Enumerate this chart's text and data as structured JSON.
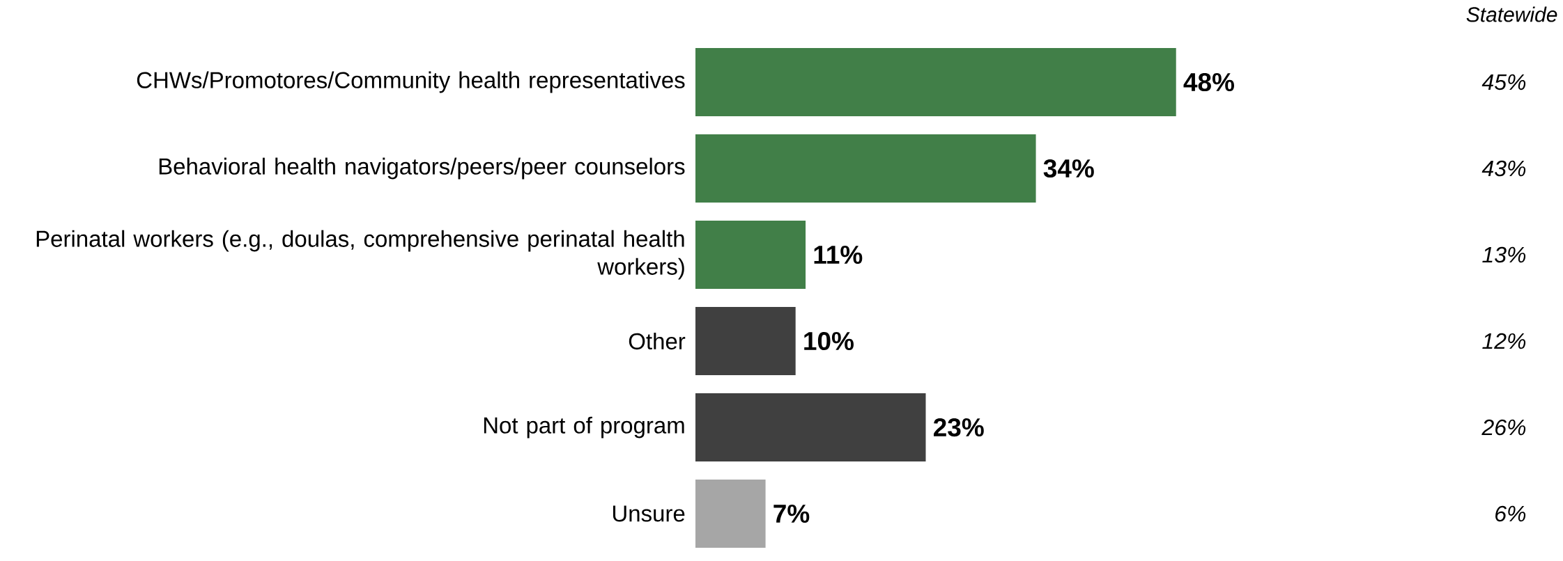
{
  "chart_data": {
    "type": "bar",
    "orientation": "horizontal",
    "categories": [
      "CHWs/Promotores/Community health representatives",
      "Behavioral health navigators/peers/peer counselors",
      "Perinatal workers (e.g., doulas, comprehensive perinatal health workers)",
      "Other",
      "Not part of program",
      "Unsure"
    ],
    "values": [
      48,
      34,
      11,
      10,
      23,
      7
    ],
    "value_labels": [
      "48%",
      "34%",
      "11%",
      "10%",
      "23%",
      "7%"
    ],
    "colors": [
      "#417f48",
      "#417f48",
      "#417f48",
      "#404040",
      "#404040",
      "#a6a6a6"
    ],
    "annotations": [
      "Statewide",
      "45%",
      "43%",
      "13%",
      "12%",
      "26%",
      "6%"
    ],
    "tick_labels": "y"
  }
}
